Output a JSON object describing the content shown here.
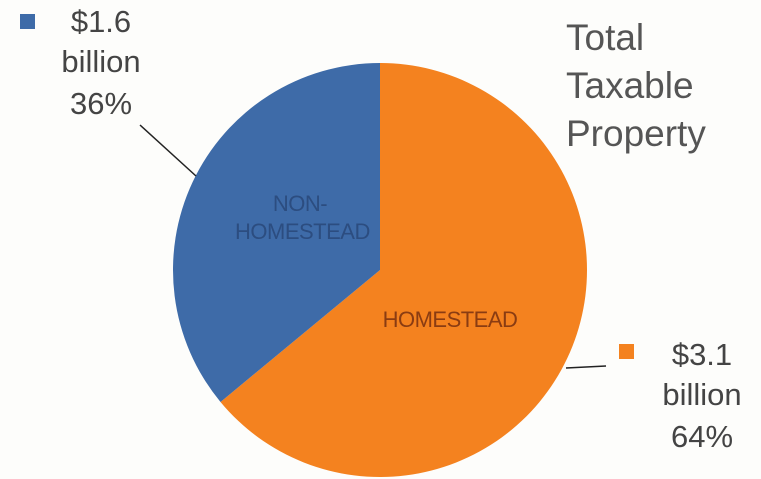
{
  "chart_data": {
    "type": "pie",
    "title": "Total Taxable Property",
    "categories": [
      "NON-HOMESTEAD",
      "HOMESTEAD"
    ],
    "values": [
      36,
      64
    ],
    "value_labels": [
      "36%",
      "64%"
    ],
    "amount_labels": [
      "$1.6 billion",
      "$3.1 billion"
    ],
    "colors": [
      "#3e6ba8",
      "#f4821f"
    ]
  }
}
